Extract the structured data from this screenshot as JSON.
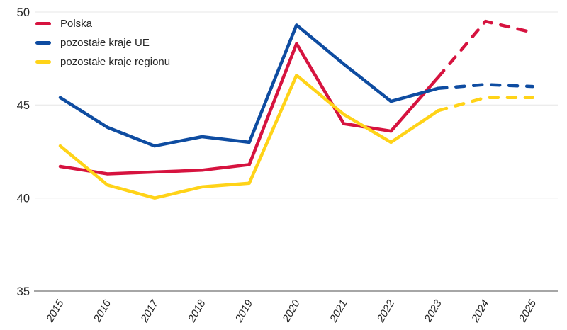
{
  "chart_data": {
    "type": "line",
    "title": "",
    "x": [
      2015,
      2016,
      2017,
      2018,
      2019,
      2020,
      2021,
      2022,
      2023,
      2024,
      2025
    ],
    "ylim": [
      35,
      50
    ],
    "yticks": [
      35,
      40,
      45,
      50
    ],
    "grid": "horizontal",
    "legend_position": "top-left",
    "forecast_style": "dashed",
    "series": [
      {
        "name": "Polska",
        "color": "#D6133F",
        "values": [
          41.7,
          41.3,
          41.4,
          41.5,
          41.8,
          48.3,
          44.0,
          43.6,
          46.5,
          49.5,
          48.9
        ],
        "solid_until_year": 2023
      },
      {
        "name": "pozostałe kraje UE",
        "color": "#0E4CA1",
        "values": [
          45.4,
          43.8,
          42.8,
          43.3,
          43.0,
          49.3,
          47.2,
          45.2,
          45.9,
          46.1,
          46.0
        ],
        "solid_until_year": 2023
      },
      {
        "name": "pozostałe kraje regionu",
        "color": "#FFD318",
        "values": [
          42.8,
          40.7,
          40.0,
          40.6,
          40.8,
          46.6,
          44.5,
          43.0,
          44.7,
          45.4,
          45.4
        ],
        "solid_until_year": 2023
      }
    ],
    "colors": {
      "gridline": "#ECECEC",
      "axis": "#A6A6A6",
      "text": "#262626"
    }
  }
}
